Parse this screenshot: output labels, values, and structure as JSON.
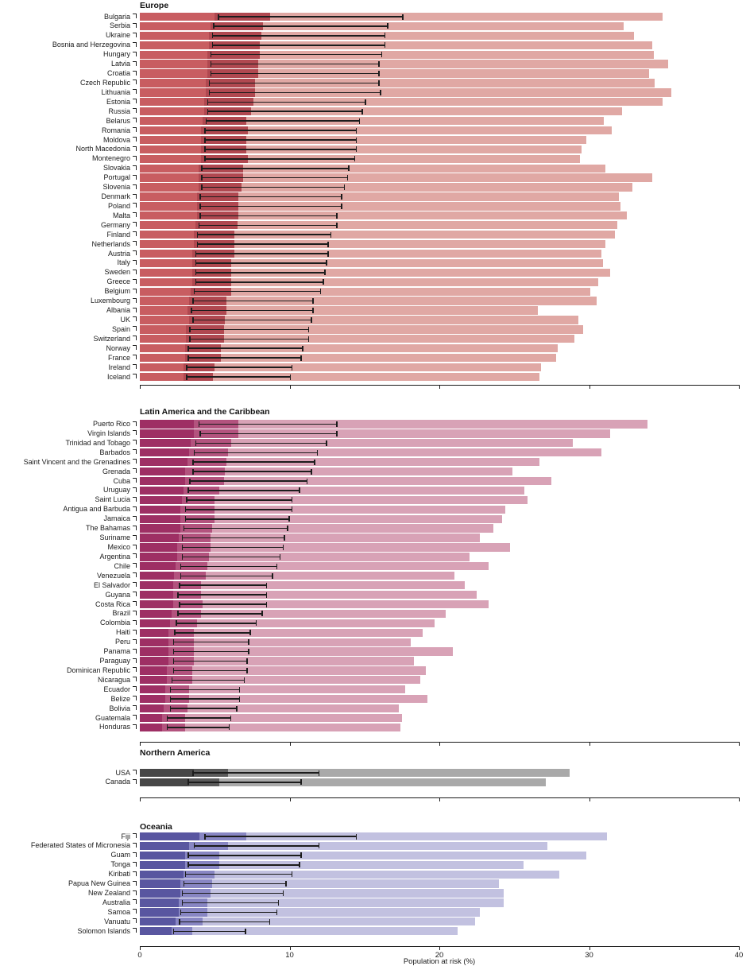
{
  "figure": {
    "xlabel": "Population at risk (%)",
    "x_tick_labels": [
      "0",
      "10",
      "20",
      "30",
      "40"
    ]
  },
  "chart_data": {
    "type": "bar",
    "orientation": "horizontal",
    "xlabel": "Population at risk (%)",
    "x_ticks": [
      0,
      10,
      20,
      30,
      40
    ],
    "xlim": [
      0,
      40
    ],
    "grid": false,
    "legend": "none visible",
    "whisker_color": "#1c1c1c",
    "note": "Each country row shows three nested shaded bands (band1_end, band2_end, band3_end in % population at risk) plus a black range whisker [lo, hi].",
    "sections": [
      {
        "title": "Europe",
        "colors": {
          "band1": "#c85d61",
          "band2": "#b04850",
          "band3": "#e0a8a4"
        },
        "rows": [
          {
            "country": "Bulgaria",
            "band1": 5.0,
            "band2": 8.7,
            "band3": 34.9,
            "lo": 5.2,
            "hi": 17.6
          },
          {
            "country": "Serbia",
            "band1": 4.7,
            "band2": 8.2,
            "band3": 32.3,
            "lo": 4.9,
            "hi": 16.6
          },
          {
            "country": "Ukraine",
            "band1": 4.6,
            "band2": 8.1,
            "band3": 33.0,
            "lo": 4.8,
            "hi": 16.4
          },
          {
            "country": "Bosnia and Herzegovina",
            "band1": 4.6,
            "band2": 8.0,
            "band3": 34.2,
            "lo": 4.8,
            "hi": 16.4
          },
          {
            "country": "Hungary",
            "band1": 4.5,
            "band2": 8.0,
            "band3": 34.3,
            "lo": 4.7,
            "hi": 16.2
          },
          {
            "country": "Latvia",
            "band1": 4.5,
            "band2": 7.9,
            "band3": 35.3,
            "lo": 4.7,
            "hi": 16.0
          },
          {
            "country": "Croatia",
            "band1": 4.5,
            "band2": 7.9,
            "band3": 34.0,
            "lo": 4.7,
            "hi": 16.0
          },
          {
            "country": "Czech Republic",
            "band1": 4.4,
            "band2": 7.7,
            "band3": 34.4,
            "lo": 4.6,
            "hi": 16.0
          },
          {
            "country": "Lithuania",
            "band1": 4.4,
            "band2": 7.7,
            "band3": 35.5,
            "lo": 4.6,
            "hi": 16.1
          },
          {
            "country": "Estonia",
            "band1": 4.3,
            "band2": 7.6,
            "band3": 34.9,
            "lo": 4.5,
            "hi": 15.1
          },
          {
            "country": "Russia",
            "band1": 4.3,
            "band2": 7.4,
            "band3": 32.2,
            "lo": 4.5,
            "hi": 14.9
          },
          {
            "country": "Belarus",
            "band1": 4.2,
            "band2": 7.1,
            "band3": 31.0,
            "lo": 4.4,
            "hi": 14.7
          },
          {
            "country": "Romania",
            "band1": 4.1,
            "band2": 7.2,
            "band3": 31.5,
            "lo": 4.3,
            "hi": 14.5
          },
          {
            "country": "Moldova",
            "band1": 4.1,
            "band2": 7.1,
            "band3": 29.8,
            "lo": 4.3,
            "hi": 14.5
          },
          {
            "country": "North Macedonia",
            "band1": 4.1,
            "band2": 7.1,
            "band3": 29.5,
            "lo": 4.3,
            "hi": 14.5
          },
          {
            "country": "Montenegro",
            "band1": 4.1,
            "band2": 7.2,
            "band3": 29.4,
            "lo": 4.3,
            "hi": 14.4
          },
          {
            "country": "Slovakia",
            "band1": 3.9,
            "band2": 6.9,
            "band3": 31.1,
            "lo": 4.1,
            "hi": 14.0
          },
          {
            "country": "Portugal",
            "band1": 3.9,
            "band2": 6.9,
            "band3": 34.2,
            "lo": 4.1,
            "hi": 13.9
          },
          {
            "country": "Slovenia",
            "band1": 3.9,
            "band2": 6.8,
            "band3": 32.9,
            "lo": 4.1,
            "hi": 13.7
          },
          {
            "country": "Denmark",
            "band1": 3.8,
            "band2": 6.6,
            "band3": 32.0,
            "lo": 4.0,
            "hi": 13.5
          },
          {
            "country": "Poland",
            "band1": 3.8,
            "band2": 6.6,
            "band3": 32.1,
            "lo": 4.0,
            "hi": 13.5
          },
          {
            "country": "Malta",
            "band1": 3.8,
            "band2": 6.6,
            "band3": 32.5,
            "lo": 4.0,
            "hi": 13.2
          },
          {
            "country": "Germany",
            "band1": 3.7,
            "band2": 6.5,
            "band3": 31.9,
            "lo": 3.9,
            "hi": 13.2
          },
          {
            "country": "Finland",
            "band1": 3.6,
            "band2": 6.3,
            "band3": 31.7,
            "lo": 3.8,
            "hi": 12.8
          },
          {
            "country": "Netherlands",
            "band1": 3.6,
            "band2": 6.3,
            "band3": 31.1,
            "lo": 3.8,
            "hi": 12.6
          },
          {
            "country": "Austria",
            "band1": 3.5,
            "band2": 6.3,
            "band3": 30.8,
            "lo": 3.7,
            "hi": 12.6
          },
          {
            "country": "Italy",
            "band1": 3.5,
            "band2": 6.1,
            "band3": 30.9,
            "lo": 3.7,
            "hi": 12.5
          },
          {
            "country": "Sweden",
            "band1": 3.5,
            "band2": 6.1,
            "band3": 31.4,
            "lo": 3.7,
            "hi": 12.4
          },
          {
            "country": "Greece",
            "band1": 3.5,
            "band2": 6.1,
            "band3": 30.6,
            "lo": 3.7,
            "hi": 12.3
          },
          {
            "country": "Belgium",
            "band1": 3.4,
            "band2": 6.1,
            "band3": 30.1,
            "lo": 3.6,
            "hi": 12.1
          },
          {
            "country": "Luxembourg",
            "band1": 3.3,
            "band2": 5.8,
            "band3": 30.5,
            "lo": 3.5,
            "hi": 11.6
          },
          {
            "country": "Albania",
            "band1": 3.2,
            "band2": 5.8,
            "band3": 26.6,
            "lo": 3.4,
            "hi": 11.6
          },
          {
            "country": "UK",
            "band1": 3.3,
            "band2": 5.7,
            "band3": 29.3,
            "lo": 3.5,
            "hi": 11.5
          },
          {
            "country": "Spain",
            "band1": 3.1,
            "band2": 5.6,
            "band3": 29.6,
            "lo": 3.3,
            "hi": 11.3
          },
          {
            "country": "Switzerland",
            "band1": 3.1,
            "band2": 5.6,
            "band3": 29.0,
            "lo": 3.3,
            "hi": 11.3
          },
          {
            "country": "Norway",
            "band1": 3.0,
            "band2": 5.4,
            "band3": 27.9,
            "lo": 3.2,
            "hi": 10.9
          },
          {
            "country": "France",
            "band1": 3.0,
            "band2": 5.4,
            "band3": 27.8,
            "lo": 3.2,
            "hi": 10.8
          },
          {
            "country": "Ireland",
            "band1": 2.9,
            "band2": 5.0,
            "band3": 26.8,
            "lo": 3.1,
            "hi": 10.2
          },
          {
            "country": "Iceland",
            "band1": 2.9,
            "band2": 4.9,
            "band3": 26.7,
            "lo": 3.1,
            "hi": 10.1
          }
        ]
      },
      {
        "title": "Latin America and the Caribbean",
        "colors": {
          "band1": "#9e2f64",
          "band2": "#b3537e",
          "band3": "#d8a2b6"
        },
        "rows": [
          {
            "country": "Puerto Rico",
            "band1": 3.6,
            "band2": 6.6,
            "band3": 33.9,
            "lo": 3.9,
            "hi": 13.2
          },
          {
            "country": "Virgin Islands",
            "band1": 3.6,
            "band2": 6.6,
            "band3": 31.4,
            "lo": 4.0,
            "hi": 13.2
          },
          {
            "country": "Trinidad and Tobago",
            "band1": 3.4,
            "band2": 6.1,
            "band3": 28.9,
            "lo": 3.7,
            "hi": 12.5
          },
          {
            "country": "Barbados",
            "band1": 3.3,
            "band2": 5.9,
            "band3": 30.8,
            "lo": 3.6,
            "hi": 11.9
          },
          {
            "country": "Saint Vincent and the Grenadines",
            "band1": 3.2,
            "band2": 5.8,
            "band3": 26.7,
            "lo": 3.5,
            "hi": 11.7
          },
          {
            "country": "Grenada",
            "band1": 3.0,
            "band2": 5.7,
            "band3": 24.9,
            "lo": 3.5,
            "hi": 11.5
          },
          {
            "country": "Cuba",
            "band1": 3.0,
            "band2": 5.6,
            "band3": 27.5,
            "lo": 3.3,
            "hi": 11.2
          },
          {
            "country": "Uruguay",
            "band1": 2.9,
            "band2": 5.3,
            "band3": 25.7,
            "lo": 3.2,
            "hi": 10.7
          },
          {
            "country": "Saint Lucia",
            "band1": 2.8,
            "band2": 5.0,
            "band3": 25.9,
            "lo": 3.1,
            "hi": 10.2
          },
          {
            "country": "Antigua and Barbuda",
            "band1": 2.7,
            "band2": 5.0,
            "band3": 24.4,
            "lo": 3.0,
            "hi": 10.2
          },
          {
            "country": "Jamaica",
            "band1": 2.7,
            "band2": 5.0,
            "band3": 24.2,
            "lo": 3.0,
            "hi": 10.0
          },
          {
            "country": "The Bahamas",
            "band1": 2.7,
            "band2": 4.8,
            "band3": 23.6,
            "lo": 2.9,
            "hi": 9.9
          },
          {
            "country": "Suriname",
            "band1": 2.6,
            "band2": 4.7,
            "band3": 22.7,
            "lo": 2.8,
            "hi": 9.7
          },
          {
            "country": "Mexico",
            "band1": 2.5,
            "band2": 4.7,
            "band3": 24.7,
            "lo": 2.8,
            "hi": 9.6
          },
          {
            "country": "Argentina",
            "band1": 2.5,
            "band2": 4.6,
            "band3": 22.0,
            "lo": 2.8,
            "hi": 9.4
          },
          {
            "country": "Chile",
            "band1": 2.4,
            "band2": 4.5,
            "band3": 23.3,
            "lo": 2.7,
            "hi": 9.2
          },
          {
            "country": "Venezuela",
            "band1": 2.3,
            "band2": 4.4,
            "band3": 21.0,
            "lo": 2.7,
            "hi": 8.9
          },
          {
            "country": "El Salvador",
            "band1": 2.2,
            "band2": 4.1,
            "band3": 21.7,
            "lo": 2.6,
            "hi": 8.5
          },
          {
            "country": "Guyana",
            "band1": 2.2,
            "band2": 4.1,
            "band3": 22.5,
            "lo": 2.5,
            "hi": 8.5
          },
          {
            "country": "Costa Rica",
            "band1": 2.2,
            "band2": 4.2,
            "band3": 23.3,
            "lo": 2.6,
            "hi": 8.5
          },
          {
            "country": "Brazil",
            "band1": 2.1,
            "band2": 4.1,
            "band3": 20.4,
            "lo": 2.5,
            "hi": 8.2
          },
          {
            "country": "Colombia",
            "band1": 2.0,
            "band2": 3.8,
            "band3": 19.7,
            "lo": 2.4,
            "hi": 7.8
          },
          {
            "country": "Haiti",
            "band1": 1.9,
            "band2": 3.6,
            "band3": 18.9,
            "lo": 2.3,
            "hi": 7.4
          },
          {
            "country": "Peru",
            "band1": 1.9,
            "band2": 3.6,
            "band3": 18.1,
            "lo": 2.2,
            "hi": 7.3
          },
          {
            "country": "Panama",
            "band1": 1.9,
            "band2": 3.6,
            "band3": 20.9,
            "lo": 2.2,
            "hi": 7.3
          },
          {
            "country": "Paraguay",
            "band1": 1.9,
            "band2": 3.6,
            "band3": 18.3,
            "lo": 2.2,
            "hi": 7.2
          },
          {
            "country": "Dominican Republic",
            "band1": 1.8,
            "band2": 3.5,
            "band3": 19.1,
            "lo": 2.2,
            "hi": 7.2
          },
          {
            "country": "Nicaragua",
            "band1": 1.8,
            "band2": 3.5,
            "band3": 18.7,
            "lo": 2.1,
            "hi": 7.0
          },
          {
            "country": "Ecuador",
            "band1": 1.7,
            "band2": 3.3,
            "band3": 17.7,
            "lo": 2.0,
            "hi": 6.7
          },
          {
            "country": "Belize",
            "band1": 1.7,
            "band2": 3.3,
            "band3": 19.2,
            "lo": 2.0,
            "hi": 6.7
          },
          {
            "country": "Bolivia",
            "band1": 1.6,
            "band2": 3.2,
            "band3": 17.3,
            "lo": 2.0,
            "hi": 6.5
          },
          {
            "country": "Guatemala",
            "band1": 1.5,
            "band2": 3.0,
            "band3": 17.5,
            "lo": 1.8,
            "hi": 6.1
          },
          {
            "country": "Honduras",
            "band1": 1.5,
            "band2": 3.0,
            "band3": 17.4,
            "lo": 1.8,
            "hi": 6.0
          }
        ]
      },
      {
        "title": "Northern America",
        "colors": {
          "band1": "#474747",
          "band2": "#5a5a5a",
          "band3": "#a9a9a9"
        },
        "rows": [
          {
            "country": "USA",
            "band1": 3.6,
            "band2": 5.9,
            "band3": 28.7,
            "lo": 3.5,
            "hi": 12.0
          },
          {
            "country": "Canada",
            "band1": 3.3,
            "band2": 5.3,
            "band3": 27.1,
            "lo": 3.2,
            "hi": 10.8
          }
        ]
      },
      {
        "title": "Oceania",
        "colors": {
          "band1": "#5956a0",
          "band2": "#8886c3",
          "band3": "#c2c1e0"
        },
        "rows": [
          {
            "country": "Fiji",
            "band1": 4.0,
            "band2": 7.1,
            "band3": 31.2,
            "lo": 4.3,
            "hi": 14.5
          },
          {
            "country": "Federated States of Micronesia",
            "band1": 3.3,
            "band2": 5.9,
            "band3": 27.2,
            "lo": 3.6,
            "hi": 12.0
          },
          {
            "country": "Guam",
            "band1": 3.0,
            "band2": 5.3,
            "band3": 29.8,
            "lo": 3.2,
            "hi": 10.8
          },
          {
            "country": "Tonga",
            "band1": 3.0,
            "band2": 5.3,
            "band3": 25.6,
            "lo": 3.2,
            "hi": 10.7
          },
          {
            "country": "Kiribati",
            "band1": 2.9,
            "band2": 5.0,
            "band3": 28.0,
            "lo": 3.0,
            "hi": 10.2
          },
          {
            "country": "Papua New Guinea",
            "band1": 2.7,
            "band2": 4.8,
            "band3": 24.0,
            "lo": 2.9,
            "hi": 9.8
          },
          {
            "country": "New Zealand",
            "band1": 2.7,
            "band2": 4.7,
            "band3": 24.3,
            "lo": 2.8,
            "hi": 9.6
          },
          {
            "country": "Australia",
            "band1": 2.6,
            "band2": 4.5,
            "band3": 24.3,
            "lo": 2.8,
            "hi": 9.3
          },
          {
            "country": "Samoa",
            "band1": 2.6,
            "band2": 4.5,
            "band3": 22.7,
            "lo": 2.7,
            "hi": 9.2
          },
          {
            "country": "Vanuatu",
            "band1": 2.4,
            "band2": 4.2,
            "band3": 22.4,
            "lo": 2.6,
            "hi": 8.7
          },
          {
            "country": "Solomon Islands",
            "band1": 2.1,
            "band2": 3.5,
            "band3": 21.2,
            "lo": 2.2,
            "hi": 7.1
          }
        ]
      }
    ]
  }
}
